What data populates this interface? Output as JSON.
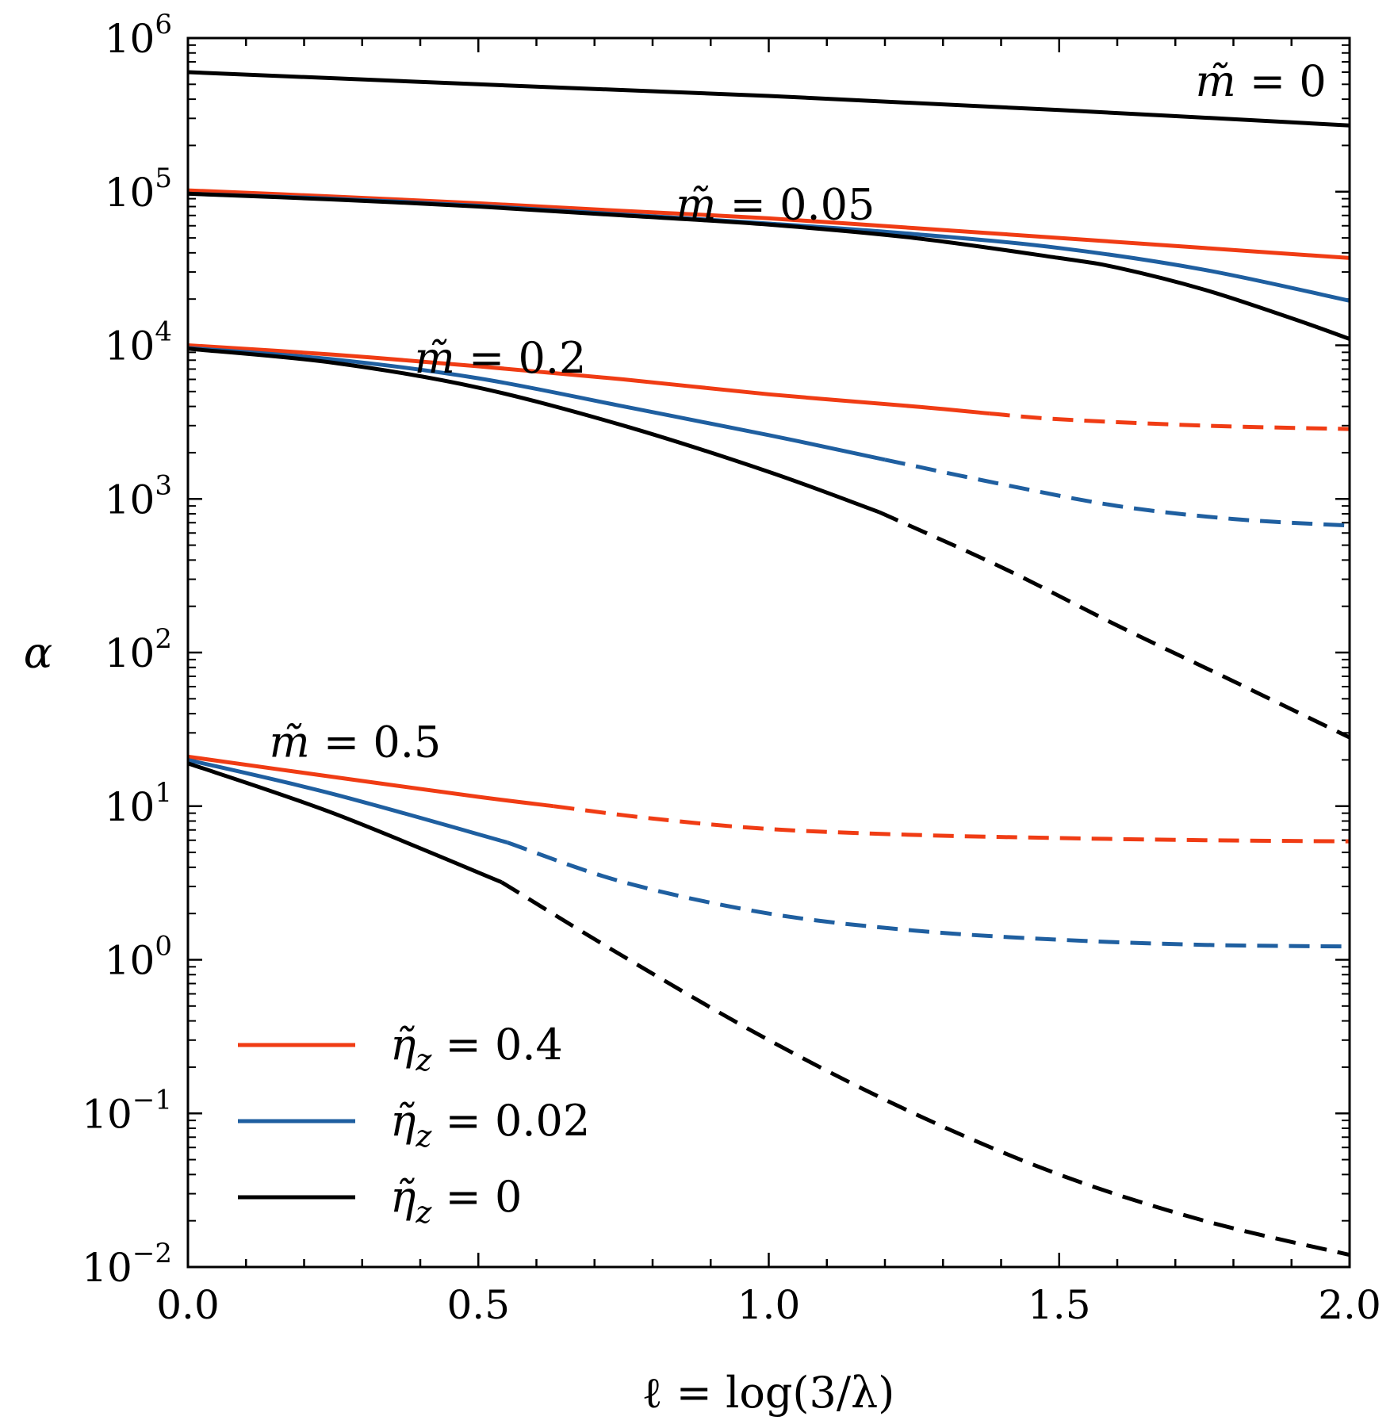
{
  "chart_data": {
    "type": "line",
    "xlabel": "ℓ = log(3/λ)",
    "ylabel": "α",
    "xlim": [
      0.0,
      2.0
    ],
    "ylim": [
      0.01,
      1000000
    ],
    "yscale": "log",
    "xticks": [
      "0.0",
      "0.5",
      "1.0",
      "1.5",
      "2.0"
    ],
    "yticks": [
      {
        "base": "10",
        "exp": "−2"
      },
      {
        "base": "10",
        "exp": "−1"
      },
      {
        "base": "10",
        "exp": "0"
      },
      {
        "base": "10",
        "exp": "1"
      },
      {
        "base": "10",
        "exp": "2"
      },
      {
        "base": "10",
        "exp": "3"
      },
      {
        "base": "10",
        "exp": "4"
      },
      {
        "base": "10",
        "exp": "5"
      },
      {
        "base": "10",
        "exp": "6"
      }
    ],
    "legend": {
      "position": "lower-left",
      "entries": [
        {
          "sym": "η̃",
          "sub": "z",
          "eq": " = ",
          "val": "0.4",
          "color": "#f03c14"
        },
        {
          "sym": "η̃",
          "sub": "z",
          "eq": " = ",
          "val": "0.02",
          "color": "#1f5fa0"
        },
        {
          "sym": "η̃",
          "sub": "z",
          "eq": " = ",
          "val": "0",
          "color": "#000000"
        }
      ]
    },
    "annotations": [
      {
        "sym": "m̃",
        "eq": " = ",
        "val": "0",
        "anchor_x": 1.96,
        "anchor_y": 520000
      },
      {
        "sym": "m̃",
        "eq": " = ",
        "val": "0.05",
        "anchor_x": 0.84,
        "anchor_y": 82000
      },
      {
        "sym": "m̃",
        "eq": " = ",
        "val": "0.2",
        "anchor_x": 0.39,
        "anchor_y": 8200
      },
      {
        "sym": "m̃",
        "eq": " = ",
        "val": "0.5",
        "anchor_x": 0.14,
        "anchor_y": 26
      }
    ],
    "series": [
      {
        "name": "m̃=0",
        "color": "#000000",
        "solid_until": 2.0,
        "x": [
          0.0,
          0.5,
          1.0,
          1.5,
          2.0
        ],
        "y": [
          600000,
          500000,
          420000,
          340000,
          270000
        ]
      },
      {
        "name": "m̃=0.05, η̃z=0.4",
        "color": "#f03c14",
        "solid_until": 2.0,
        "x": [
          0.0,
          0.25,
          0.5,
          0.75,
          1.0,
          1.25,
          1.5,
          1.75,
          2.0
        ],
        "y": [
          102000,
          93000,
          84000,
          75000,
          67000,
          58000,
          50000,
          43000,
          37000
        ]
      },
      {
        "name": "m̃=0.05, η̃z=0.02",
        "color": "#1f5fa0",
        "solid_until": 2.0,
        "x": [
          0.0,
          0.25,
          0.5,
          0.75,
          1.0,
          1.25,
          1.5,
          1.75,
          2.0
        ],
        "y": [
          97000,
          90000,
          81000,
          71000,
          62000,
          53000,
          43000,
          31000,
          19500
        ]
      },
      {
        "name": "m̃=0.05, η̃z=0",
        "color": "#000000",
        "solid_until": 2.0,
        "x": [
          0.0,
          0.25,
          0.5,
          0.75,
          1.0,
          1.25,
          1.5,
          1.6,
          1.75,
          1.9,
          2.0
        ],
        "y": [
          97000,
          89000,
          80000,
          70000,
          61000,
          50000,
          37000,
          32000,
          23000,
          15000,
          11000
        ]
      },
      {
        "name": "m̃=0.2, η̃z=0.4",
        "color": "#f03c14",
        "solid_until": 1.38,
        "x": [
          0.0,
          0.25,
          0.5,
          0.75,
          1.0,
          1.25,
          1.38,
          1.5,
          1.75,
          2.0
        ],
        "y": [
          10000,
          8700,
          7300,
          6000,
          4800,
          4000,
          3600,
          3300,
          3000,
          2850
        ]
      },
      {
        "name": "m̃=0.2, η̃z=0.02",
        "color": "#1f5fa0",
        "solid_until": 1.2,
        "x": [
          0.0,
          0.25,
          0.5,
          0.75,
          1.0,
          1.2,
          1.4,
          1.6,
          1.8,
          2.0
        ],
        "y": [
          9600,
          8100,
          6100,
          4000,
          2600,
          1800,
          1250,
          900,
          740,
          670
        ]
      },
      {
        "name": "m̃=0.2, η̃z=0",
        "color": "#000000",
        "solid_until": 1.19,
        "x": [
          0.0,
          0.25,
          0.5,
          0.75,
          1.0,
          1.19,
          1.4,
          1.6,
          1.8,
          2.0
        ],
        "y": [
          9500,
          7700,
          5300,
          3000,
          1500,
          820,
          360,
          150,
          65,
          28
        ]
      },
      {
        "name": "m̃=0.5, η̃z=0.4",
        "color": "#f03c14",
        "solid_until": 0.63,
        "x": [
          0.0,
          0.25,
          0.5,
          0.63,
          0.8,
          1.0,
          1.25,
          1.5,
          1.75,
          2.0
        ],
        "y": [
          21,
          15.5,
          11.5,
          10,
          8.3,
          7.1,
          6.5,
          6.2,
          6.0,
          5.9
        ]
      },
      {
        "name": "m̃=0.5, η̃z=0.02",
        "color": "#1f5fa0",
        "solid_until": 0.55,
        "x": [
          0.0,
          0.25,
          0.55,
          0.75,
          1.0,
          1.25,
          1.5,
          1.75,
          2.0
        ],
        "y": [
          20,
          12,
          5.8,
          3.2,
          2.0,
          1.55,
          1.35,
          1.25,
          1.22
        ]
      },
      {
        "name": "m̃=0.5, η̃z=0",
        "color": "#000000",
        "solid_until": 0.54,
        "x": [
          0.0,
          0.25,
          0.54,
          0.75,
          1.0,
          1.25,
          1.5,
          1.75,
          2.0
        ],
        "y": [
          19,
          9,
          3.2,
          1.05,
          0.3,
          0.1,
          0.04,
          0.02,
          0.012
        ]
      }
    ]
  }
}
